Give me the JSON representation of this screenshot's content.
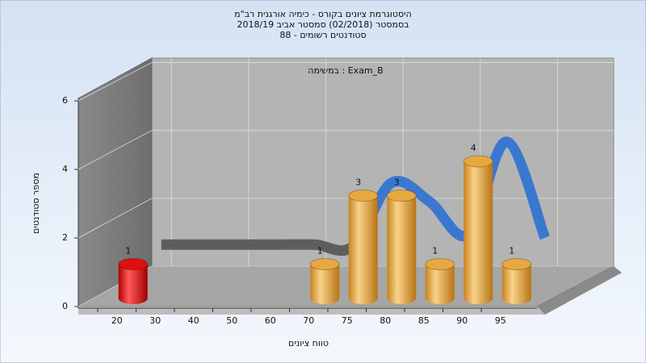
{
  "chart_data": {
    "type": "bar3d",
    "title": [
      "היסטוגרמת ציונים בקורס - כימיה אורגנית רב\"מ",
      "בסמסטר  (02/2018)  סמסטר אביב 2018/19",
      "סטודנטים רשומים - 88"
    ],
    "subtitle": "במשימה : Exam_B",
    "xlabel": "טווח ציונים",
    "ylabel": "מספר סטודנטים",
    "categories": [
      "20",
      "30",
      "40",
      "50",
      "60",
      "70",
      "75",
      "80",
      "85",
      "90",
      "95"
    ],
    "values": [
      1,
      0,
      0,
      0,
      0,
      1,
      3,
      3,
      1,
      4,
      1
    ],
    "colors": [
      "#e01010",
      "#e8a840",
      "#e8a840",
      "#e8a840",
      "#e8a840",
      "#e8a840",
      "#e8a840",
      "#e8a840",
      "#e8a840",
      "#e8a840",
      "#e8a840"
    ],
    "curve": {
      "values": [
        1.1,
        1.1,
        1.1,
        1.1,
        1.1,
        1.05,
        2.9,
        2.35,
        1.4,
        4.1,
        1.3
      ],
      "colors": [
        "#5e5e5e",
        "#3a78d0"
      ]
    },
    "ylim": [
      0,
      6
    ],
    "yticks": [
      0,
      2,
      4,
      6
    ],
    "grid": true
  }
}
